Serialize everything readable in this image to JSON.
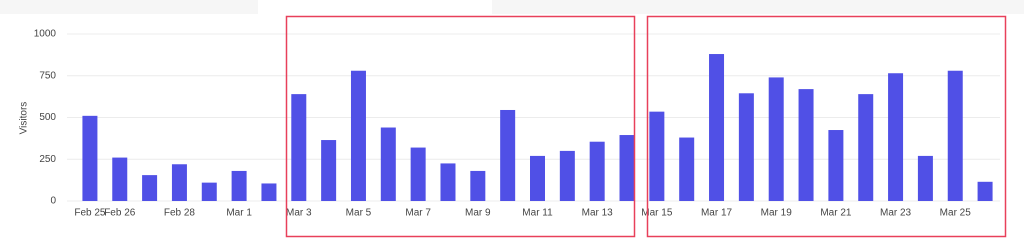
{
  "chart_data": {
    "type": "bar",
    "y_label": "Visitors",
    "categories": [
      "Feb 25",
      "Feb 26",
      null,
      "Feb 28",
      null,
      "Mar 1",
      null,
      "Mar 3",
      null,
      "Mar 5",
      null,
      "Mar 7",
      null,
      "Mar 9",
      null,
      "Mar 11",
      null,
      "Mar 13",
      null,
      "Mar 15",
      null,
      "Mar 17",
      null,
      "Mar 19",
      null,
      "Mar 21",
      null,
      "Mar 23",
      null,
      "Mar 25",
      null
    ],
    "values": [
      510,
      260,
      155,
      220,
      110,
      180,
      105,
      640,
      365,
      780,
      440,
      320,
      225,
      180,
      545,
      270,
      300,
      355,
      395,
      535,
      380,
      880,
      645,
      740,
      670,
      425,
      640,
      765,
      270,
      780,
      115
    ],
    "color": "#5050e6",
    "ylim": [
      0,
      1000
    ],
    "yticks": [
      0,
      250,
      500,
      750,
      1000
    ],
    "grid": true
  }
}
